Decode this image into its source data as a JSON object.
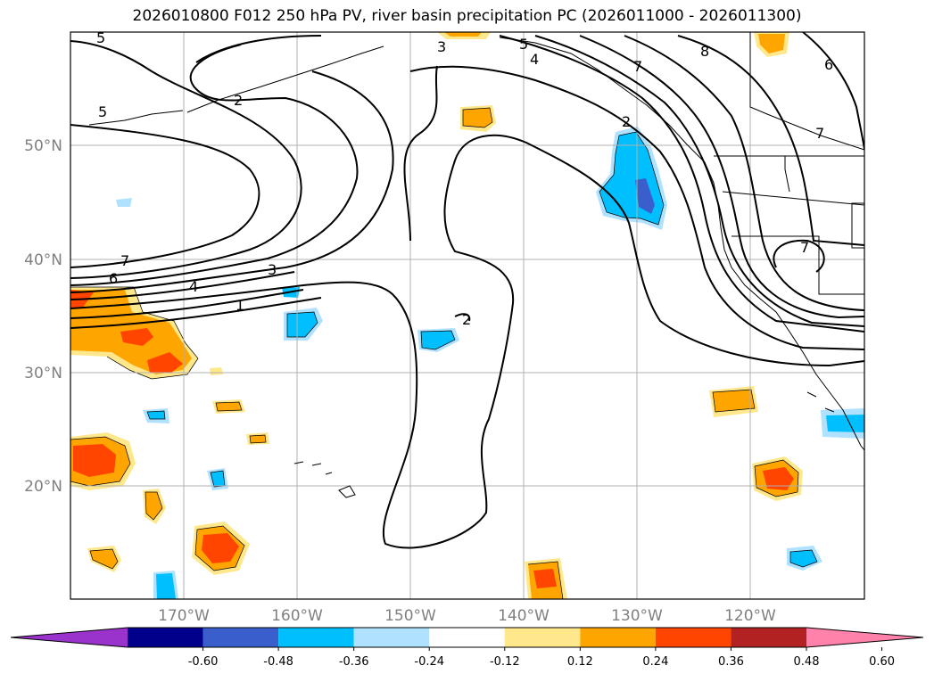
{
  "title": "2026010800 F012 250 hPa PV, river basin precipitation PC (2026011000 - 2026011300)",
  "map": {
    "lat_labels": [
      "50°N",
      "40°N",
      "30°N",
      "20°N"
    ],
    "lon_labels": [
      "170°W",
      "160°W",
      "150°W",
      "140°W",
      "130°W",
      "120°W"
    ],
    "contour_labels": {
      "c5a": "5",
      "c2a": "2",
      "c3a": "3",
      "c5b": "5",
      "c4a": "4",
      "c7a": "7",
      "c8": "8",
      "c6a": "6",
      "c5c": "5",
      "c7b": "7",
      "c6b": "6",
      "c4b": "4",
      "c3b": "3",
      "c1": "1",
      "c2b": "2",
      "c2c": "2",
      "c7c": "7",
      "c7d": "7"
    }
  },
  "colorbar": {
    "levels": [
      "-0.60",
      "-0.48",
      "-0.36",
      "-0.24",
      "-0.12",
      "0.12",
      "0.24",
      "0.36",
      "0.48",
      "0.60"
    ],
    "colors": [
      "#9933cc",
      "#00008b",
      "#3a5fcd",
      "#00bfff",
      "#b0e2ff",
      "#ffffff",
      "#ffe88c",
      "#ffa500",
      "#ff4500",
      "#b22222",
      "#ff82ab"
    ]
  }
}
